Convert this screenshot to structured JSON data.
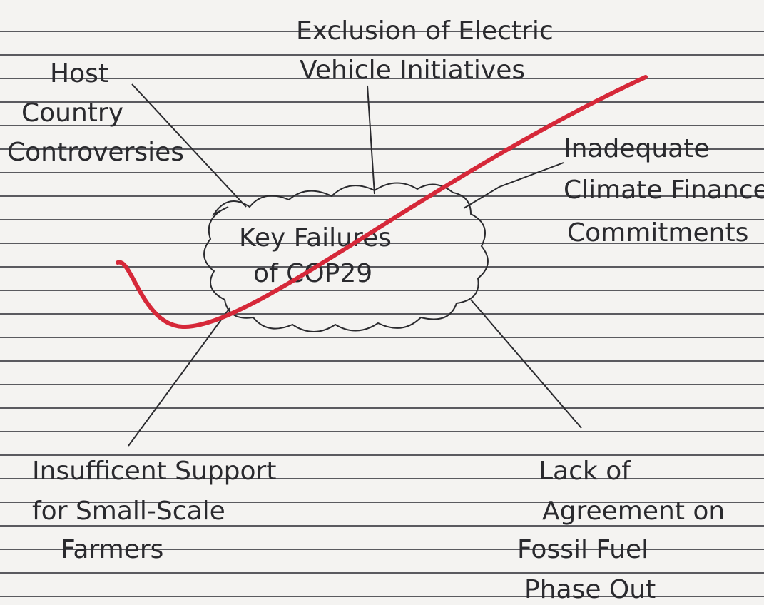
{
  "center": {
    "lines": [
      "Key Failures",
      "of COP29"
    ]
  },
  "nodes": [
    {
      "lines": [
        "Exclusion of Electric",
        "Vehicle Initiatives"
      ]
    },
    {
      "lines": [
        "Host",
        "Country",
        "Controversies"
      ]
    },
    {
      "lines": [
        "Inadequate",
        "Climate Finance",
        "Commitments"
      ]
    },
    {
      "lines": [
        "Insufficent Support",
        "for Small-Scale",
        "Farmers"
      ]
    },
    {
      "lines": [
        "Lack of",
        "Agreement on",
        "Fossil Fuel",
        "Phase Out"
      ]
    }
  ]
}
